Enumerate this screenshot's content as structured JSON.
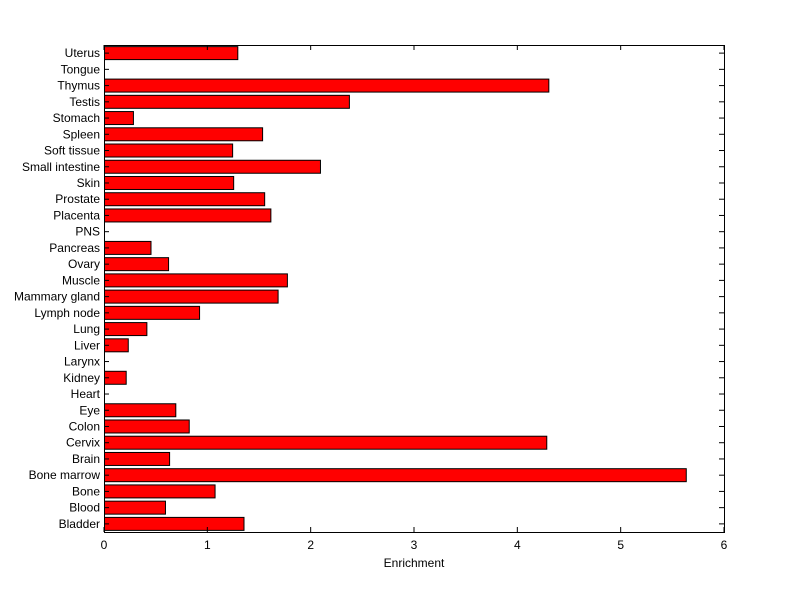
{
  "chart_data": {
    "type": "bar",
    "orientation": "horizontal",
    "title": "",
    "xlabel": "Enrichment",
    "ylabel": "",
    "xlim": [
      0,
      6
    ],
    "xticks": [
      "0",
      "1",
      "2",
      "3",
      "4",
      "5",
      "6"
    ],
    "grid": false,
    "bar_color": "#ff0000",
    "bar_edge_color": "#000000",
    "categories": [
      "Uterus",
      "Tongue",
      "Thymus",
      "Testis",
      "Stomach",
      "Spleen",
      "Soft tissue",
      "Small intestine",
      "Skin",
      "Prostate",
      "Placenta",
      "PNS",
      "Pancreas",
      "Ovary",
      "Muscle",
      "Mammary gland",
      "Lymph node",
      "Lung",
      "Liver",
      "Larynx",
      "Kidney",
      "Heart",
      "Eye",
      "Colon",
      "Cervix",
      "Brain",
      "Bone marrow",
      "Bone",
      "Blood",
      "Bladder"
    ],
    "values": [
      1.29,
      0,
      4.3,
      2.37,
      0.28,
      1.53,
      1.24,
      2.09,
      1.25,
      1.55,
      1.61,
      0,
      0.45,
      0.62,
      1.77,
      1.68,
      0.92,
      0.41,
      0.23,
      0,
      0.21,
      0,
      0.69,
      0.82,
      4.28,
      0.63,
      5.63,
      1.07,
      0.59,
      1.35
    ]
  }
}
